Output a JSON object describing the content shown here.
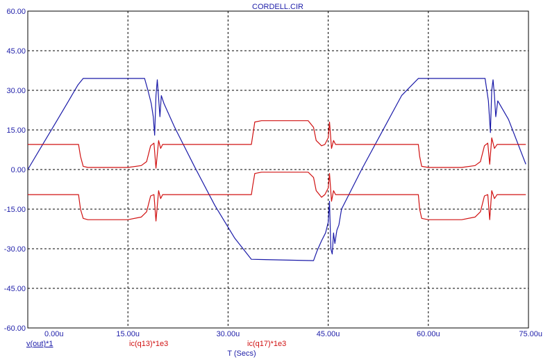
{
  "chart_data": {
    "type": "line",
    "title": "CORDELL.CIR",
    "xlabel": "T (Secs)",
    "ylabel": "",
    "xlim": [
      0,
      75
    ],
    "ylim": [
      -60,
      60
    ],
    "grid": true,
    "legend_position": "bottom-left",
    "xticks": [
      {
        "value": 0,
        "label": "0.00u"
      },
      {
        "value": 15,
        "label": "15.00u"
      },
      {
        "value": 30,
        "label": "30.00u"
      },
      {
        "value": 45,
        "label": "45.00u"
      },
      {
        "value": 60,
        "label": "60.00u"
      },
      {
        "value": 75,
        "label": "75.00u"
      }
    ],
    "yticks": [
      {
        "value": 60,
        "label": "60.00"
      },
      {
        "value": 45,
        "label": "45.00"
      },
      {
        "value": 30,
        "label": "30.00"
      },
      {
        "value": 15,
        "label": "15.00"
      },
      {
        "value": 0,
        "label": "0.00"
      },
      {
        "value": -15,
        "label": "-15.00"
      },
      {
        "value": -30,
        "label": "-30.00"
      },
      {
        "value": -45,
        "label": "-45.00"
      },
      {
        "value": -60,
        "label": "-60.00"
      }
    ],
    "series": [
      {
        "name": "v(out)*1",
        "color": "#1a1aa8",
        "x": [
          0,
          2,
          4,
          6,
          7.5,
          8.3,
          17.5,
          18,
          18.5,
          18.8,
          19,
          19.2,
          19.4,
          19.6,
          19.8,
          20,
          20.4,
          22,
          25,
          28,
          31,
          33.5,
          42.8,
          43.3,
          44,
          44.6,
          45,
          45.2,
          45.4,
          45.6,
          45.8,
          46,
          46.3,
          46.6,
          47,
          50,
          53,
          56,
          58.5,
          68.5,
          69,
          69.3,
          69.5,
          69.7,
          69.9,
          70.1,
          70.4,
          72,
          74.6
        ],
        "values": [
          0,
          8.5,
          17,
          25.5,
          32,
          34.5,
          34.5,
          30,
          25,
          20,
          13,
          28,
          34,
          27,
          20,
          28,
          25,
          16,
          1,
          -13.5,
          -26,
          -34,
          -34.5,
          -31,
          -27,
          -24,
          -20,
          -12,
          -30,
          -32,
          -24,
          -28,
          -23,
          -21,
          -15,
          0,
          14,
          28,
          34.5,
          34.5,
          26,
          14,
          30,
          34,
          28,
          20,
          26,
          19,
          2
        ]
      },
      {
        "name": "ic(q13)*1e3",
        "color": "#d01010",
        "x": [
          0,
          7.6,
          7.9,
          8.3,
          9,
          15,
          17,
          17.8,
          18.4,
          18.9,
          19.2,
          19.6,
          19.9,
          20.2,
          20.5,
          33.5,
          33.7,
          34,
          35,
          42,
          42.8,
          43.2,
          44,
          44.5,
          45,
          45.2,
          45.5,
          45.8,
          46.1,
          46.4,
          58.5,
          58.7,
          59,
          60,
          65,
          67,
          67.8,
          68.4,
          68.9,
          69.2,
          69.5,
          69.9,
          70.3,
          74.6
        ],
        "values": [
          9.5,
          9.5,
          5,
          1.2,
          0.8,
          0.8,
          1.5,
          3,
          9,
          10,
          0.5,
          11,
          8,
          9.5,
          9.5,
          9.5,
          13,
          18,
          18.5,
          18.5,
          16,
          11,
          9,
          9.5,
          12,
          18,
          8,
          11,
          9.5,
          9.5,
          9.5,
          5,
          1.2,
          0.8,
          0.8,
          1.5,
          3,
          9,
          10,
          2,
          12,
          8,
          9.5,
          9.5
        ]
      },
      {
        "name": "ic(q17)*1e3",
        "color": "#d01010",
        "x": [
          0,
          7.6,
          7.9,
          8.3,
          9,
          15,
          17,
          17.8,
          18.4,
          18.9,
          19.2,
          19.6,
          19.9,
          20.2,
          20.5,
          33.5,
          33.7,
          34,
          35,
          42,
          42.8,
          43.2,
          44,
          44.5,
          45,
          45.2,
          45.5,
          45.8,
          46.1,
          46.4,
          58.5,
          58.7,
          59,
          60,
          65,
          67,
          67.8,
          68.4,
          68.9,
          69.2,
          69.5,
          69.9,
          70.3,
          74.6
        ],
        "values": [
          -9.5,
          -9.5,
          -15,
          -18.5,
          -19,
          -19,
          -18,
          -16,
          -10,
          -9.5,
          -19.5,
          -8,
          -11,
          -9.5,
          -9.5,
          -9.5,
          -6,
          -1.5,
          -1,
          -1,
          -3,
          -8,
          -10.5,
          -9.5,
          -7,
          -1.5,
          -12,
          -8,
          -9.5,
          -9.5,
          -9.5,
          -15,
          -18.5,
          -19,
          -19,
          -18,
          -16,
          -10,
          -9.5,
          -19,
          -8,
          -11,
          -9.5,
          -9.5
        ]
      }
    ]
  }
}
